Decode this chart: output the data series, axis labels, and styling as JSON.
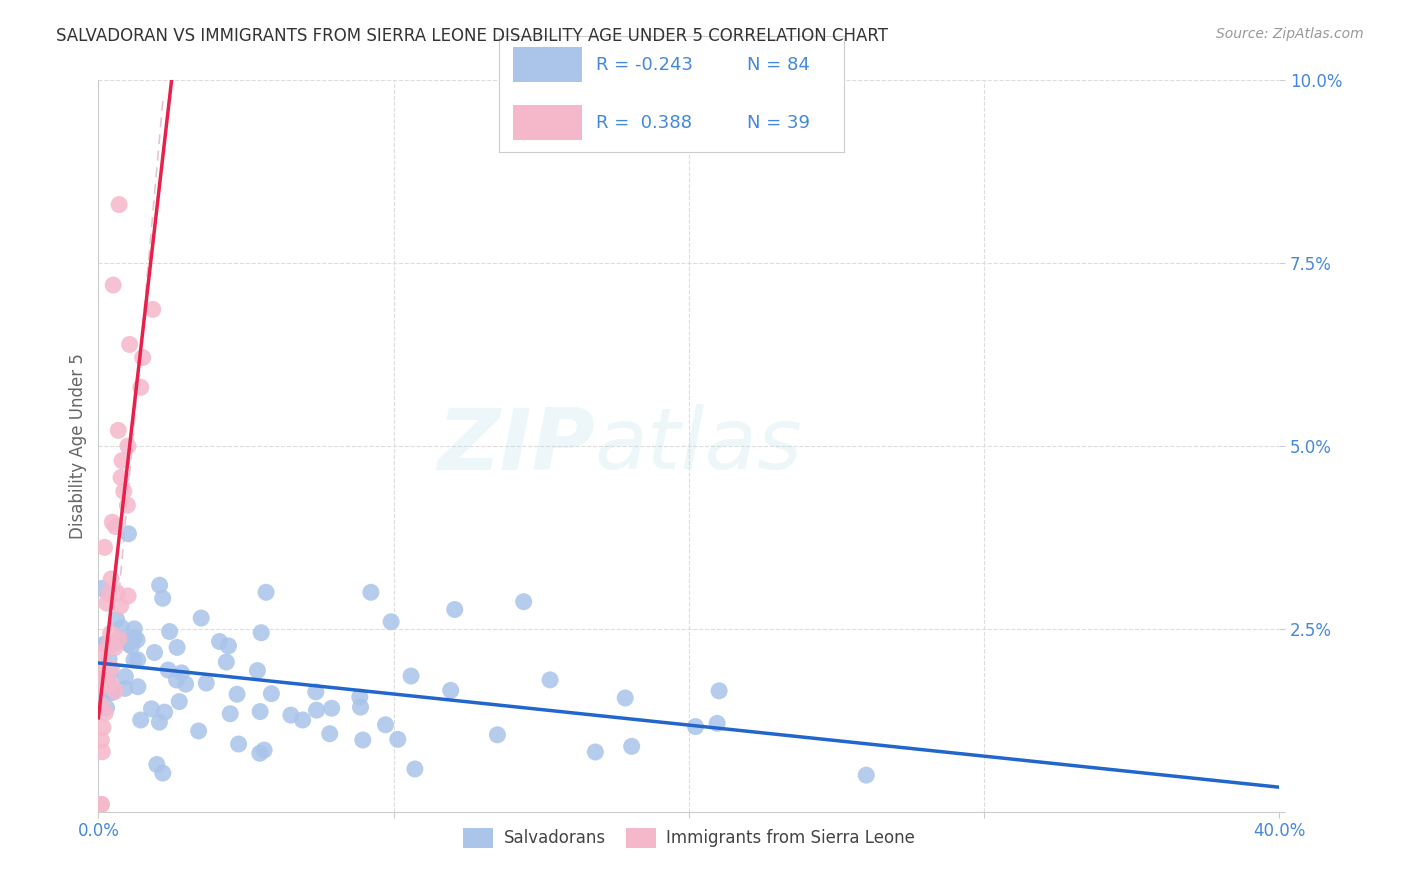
{
  "title": "SALVADORAN VS IMMIGRANTS FROM SIERRA LEONE DISABILITY AGE UNDER 5 CORRELATION CHART",
  "source": "Source: ZipAtlas.com",
  "ylabel": "Disability Age Under 5",
  "xlim": [
    0.0,
    0.4
  ],
  "ylim": [
    0.0,
    0.1
  ],
  "xticks": [
    0.0,
    0.1,
    0.2,
    0.3,
    0.4
  ],
  "yticks": [
    0.0,
    0.025,
    0.05,
    0.075,
    0.1
  ],
  "xticklabels": [
    "0.0%",
    "",
    "",
    "",
    "40.0%"
  ],
  "yticklabels": [
    "",
    "2.5%",
    "5.0%",
    "7.5%",
    "10.0%"
  ],
  "salvadoran_color": "#aac4ea",
  "sierra_leone_color": "#f5b8cb",
  "trend_salvadoran_color": "#2266cc",
  "trend_sierra_leone_color": "#e8204a",
  "trend_neutral_color": "#d0a0b0",
  "R_salvadoran": -0.243,
  "N_salvadoran": 84,
  "R_sierra_leone": 0.388,
  "N_sierra_leone": 39,
  "watermark_zip": "ZIP",
  "watermark_atlas": "atlas",
  "legend_label_salvadoran": "Salvadorans",
  "legend_label_sierra_leone": "Immigrants from Sierra Leone",
  "tick_color": "#4488dd",
  "ylabel_color": "#666666",
  "title_color": "#333333",
  "source_color": "#999999",
  "grid_color": "#dddddd",
  "legend_box_color": "#eeeeee"
}
